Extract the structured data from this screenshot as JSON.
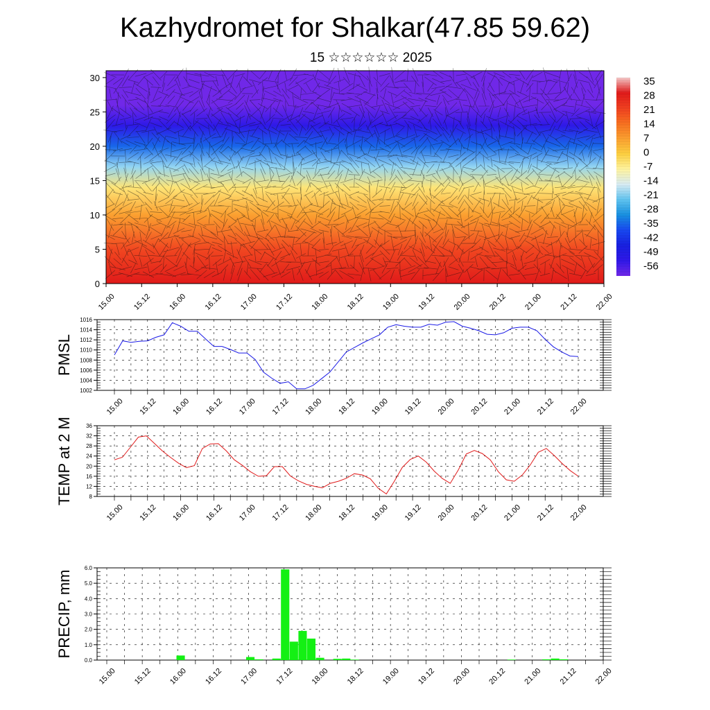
{
  "title": "Kazhydromet for Shalkar(47.85 59.62)",
  "subtitle": "15 ☆☆☆☆☆☆ 2025",
  "time_labels": [
    "15.00",
    "15.12",
    "16.00",
    "16.12",
    "17.00",
    "17.12",
    "18.00",
    "18.12",
    "19.00",
    "19.12",
    "20.00",
    "20.12",
    "21.00",
    "21.12",
    "22.00"
  ],
  "chart_data": [
    {
      "type": "heatmap",
      "name": "cross-section",
      "y_ticks": [
        0,
        5,
        10,
        15,
        20,
        25,
        30
      ],
      "ylim": [
        0,
        31
      ],
      "colorbar": {
        "labels": [
          "35",
          "28",
          "21",
          "14",
          "7",
          "0",
          "-7",
          "-14",
          "-21",
          "-28",
          "-35",
          "-42",
          "-49",
          "-56"
        ],
        "colors": [
          "#f4c8c8",
          "#e01a1a",
          "#f04020",
          "#f87020",
          "#fba030",
          "#fdd040",
          "#fff4a0",
          "#d8ecf4",
          "#60c4f0",
          "#1890e0",
          "#1848f0",
          "#1820e0",
          "#3018e8",
          "#7028e8"
        ]
      },
      "temperature_profile": [
        {
          "h": 0,
          "t": 28
        },
        {
          "h": 5,
          "t": 20
        },
        {
          "h": 10,
          "t": 7
        },
        {
          "h": 14,
          "t": -4
        },
        {
          "h": 17,
          "t": -18
        },
        {
          "h": 20,
          "t": -32
        },
        {
          "h": 23,
          "t": -48
        },
        {
          "h": 26,
          "t": -56
        },
        {
          "h": 31,
          "t": -58
        }
      ]
    },
    {
      "type": "line",
      "name": "pmsl",
      "ylabel": "PMSL",
      "ylim": [
        1002,
        1016
      ],
      "y_ticks": [
        "1002",
        "1004",
        "1006",
        "1008",
        "1010",
        "1012",
        "1014",
        "1016"
      ],
      "color": "#1a1ae6",
      "values": [
        1009,
        1011.8,
        1011.5,
        1011.7,
        1011.8,
        1012.5,
        1013,
        1015.4,
        1014.7,
        1013.7,
        1013.7,
        1012.2,
        1010.7,
        1010.7,
        1010.1,
        1009.4,
        1009.4,
        1008.1,
        1005.6,
        1004.4,
        1003.4,
        1003.7,
        1002.3,
        1002.3,
        1003,
        1004.3,
        1005.6,
        1007.6,
        1009.6,
        1010.5,
        1011.4,
        1012.2,
        1013,
        1014.5,
        1015,
        1014.7,
        1014.5,
        1014.5,
        1015.1,
        1014.9,
        1015.5,
        1015.6,
        1014.7,
        1014.3,
        1013.8,
        1013.1,
        1013,
        1013.4,
        1014.3,
        1014.5,
        1014.5,
        1013.8,
        1012.1,
        1010.6,
        1009.6,
        1008.8,
        1008.7
      ]
    },
    {
      "type": "line",
      "name": "temp2m",
      "ylabel": "TEMP at 2 M",
      "ylim": [
        8,
        36
      ],
      "y_ticks": [
        "8",
        "12",
        "16",
        "20",
        "24",
        "28",
        "32",
        "36"
      ],
      "color": "#e01a1a",
      "values": [
        22.5,
        23.5,
        27.5,
        31.5,
        32,
        29,
        26,
        23.5,
        21.2,
        19.4,
        20.2,
        27,
        28.8,
        28.9,
        26,
        22.5,
        20.3,
        17.8,
        16,
        16.2,
        19.8,
        19.8,
        16.1,
        14.2,
        12.8,
        12,
        11.4,
        13.2,
        14,
        15.2,
        17,
        16.5,
        15,
        11.2,
        9,
        14,
        19.5,
        22.7,
        24,
        21.6,
        18,
        15.1,
        13.2,
        18.5,
        24.8,
        26.2,
        25,
        22.5,
        17.8,
        14.6,
        14,
        16.5,
        20.5,
        25.5,
        27,
        24.2,
        21,
        18.2,
        16
      ]
    },
    {
      "type": "bar",
      "name": "precip",
      "ylabel": "PRECIP, mm",
      "ylim": [
        0,
        6
      ],
      "y_ticks": [
        "0.0",
        "1.0",
        "2.0",
        "3.0",
        "4.0",
        "5.0",
        "6.0"
      ],
      "color": "#14f014",
      "bars": [
        {
          "i": 8,
          "v": 0.3
        },
        {
          "i": 16,
          "v": 0.2
        },
        {
          "i": 17,
          "v": 0.05
        },
        {
          "i": 19,
          "v": 0.1
        },
        {
          "i": 20,
          "v": 5.9
        },
        {
          "i": 21,
          "v": 1.2
        },
        {
          "i": 22,
          "v": 1.9
        },
        {
          "i": 23,
          "v": 1.4
        },
        {
          "i": 24,
          "v": 0.15
        },
        {
          "i": 26,
          "v": 0.08
        },
        {
          "i": 27,
          "v": 0.1
        },
        {
          "i": 28,
          "v": 0.03
        },
        {
          "i": 46,
          "v": 0.03
        },
        {
          "i": 50,
          "v": 0.05
        },
        {
          "i": 51,
          "v": 0.1
        },
        {
          "i": 52,
          "v": 0.05
        }
      ]
    }
  ]
}
